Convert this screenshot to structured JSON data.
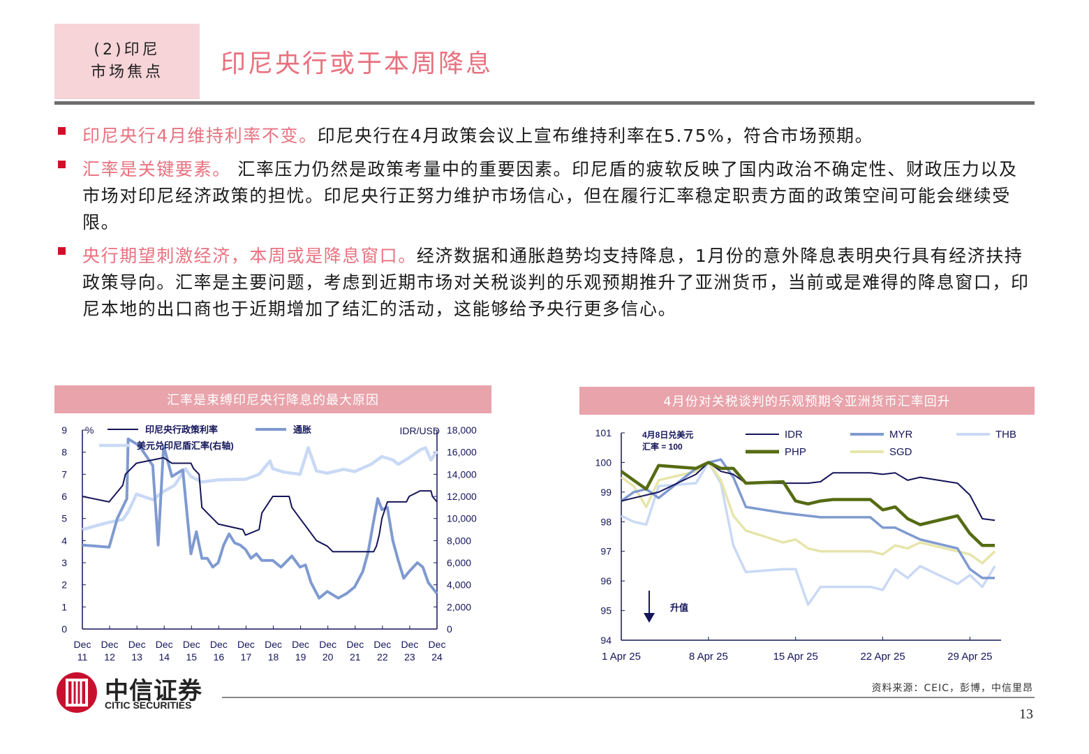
{
  "header": {
    "section_line1": "(2)印尼",
    "section_line2": "市场焦点",
    "title": "印尼央行或于本周降息"
  },
  "bullets": [
    {
      "highlight": "印尼央行4月维持利率不变。",
      "text": "印尼央行在4月政策会议上宣布维持利率在5.75%，符合市场预期。"
    },
    {
      "highlight": "汇率是关键要素。",
      "text": " 汇率压力仍然是政策考量中的重要因素。印尼盾的疲软反映了国内政治不确定性、财政压力以及市场对印尼经济政策的担忧。印尼央行正努力维护市场信心，但在履行汇率稳定职责方面的政策空间可能会继续受限。"
    },
    {
      "highlight": "央行期望刺激经济，本周或是降息窗口。",
      "text": "经济数据和通胀趋势均支持降息，1月份的意外降息表明央行具有经济扶持政策导向。汇率是主要问题，考虑到近期市场对关税谈判的乐观预期推升了亚洲货币，当前或是难得的降息窗口，印尼本地的出口商也于近期增加了结汇的活动，这能够给予央行更多信心。"
    }
  ],
  "colors": {
    "accent_pink": "#e9717f",
    "header_pink": "#e8a3ab",
    "box_pink": "#f6d4d8",
    "navy": "#14145a",
    "steel_blue": "#7f9ad0",
    "light_blue": "#c9d9f5",
    "olive": "#556b12",
    "pale_yellow": "#e6e5aa"
  },
  "chart_data": [
    {
      "type": "line",
      "title": "汇率是束缚印尼央行降息的最大原因",
      "left_unit": "%",
      "right_unit": "IDR/USD",
      "x_ticks": [
        "Dec 11",
        "Dec 12",
        "Dec 13",
        "Dec 14",
        "Dec 15",
        "Dec 16",
        "Dec 17",
        "Dec 18",
        "Dec 19",
        "Dec 20",
        "Dec 21",
        "Dec 22",
        "Dec 23",
        "Dec 24"
      ],
      "xlim": [
        2011.92,
        2024.92
      ],
      "ylim_left": [
        0,
        9
      ],
      "ylim_right": [
        0,
        18000
      ],
      "y_ticks_left": [
        "0",
        "1",
        "2",
        "3",
        "4",
        "5",
        "6",
        "7",
        "8",
        "9"
      ],
      "y_ticks_right": [
        "0",
        "2,000",
        "4,000",
        "6,000",
        "8,000",
        "10,000",
        "12,000",
        "14,000",
        "16,000",
        "18,000"
      ],
      "legend": [
        "印尼央行政策利率",
        "通胀",
        "美元兑印尼盾汇率(右轴)"
      ],
      "series": [
        {
          "name": "印尼央行政策利率",
          "axis": "left",
          "color": "#14145a",
          "points": [
            [
              2011.92,
              6.0
            ],
            [
              2012.9,
              5.75
            ],
            [
              2013.4,
              6.5
            ],
            [
              2013.5,
              7.0
            ],
            [
              2013.9,
              7.5
            ],
            [
              2014.9,
              7.75
            ],
            [
              2015.2,
              7.5
            ],
            [
              2015.9,
              7.5
            ],
            [
              2016.0,
              7.25
            ],
            [
              2016.2,
              7.0
            ],
            [
              2016.3,
              5.5
            ],
            [
              2016.5,
              5.25
            ],
            [
              2016.7,
              5.0
            ],
            [
              2016.9,
              4.75
            ],
            [
              2017.8,
              4.5
            ],
            [
              2017.9,
              4.25
            ],
            [
              2018.4,
              4.5
            ],
            [
              2018.5,
              5.25
            ],
            [
              2018.9,
              6.0
            ],
            [
              2019.5,
              6.0
            ],
            [
              2019.6,
              5.5
            ],
            [
              2019.9,
              5.0
            ],
            [
              2020.2,
              4.5
            ],
            [
              2020.5,
              4.0
            ],
            [
              2020.9,
              3.75
            ],
            [
              2021.1,
              3.5
            ],
            [
              2022.6,
              3.5
            ],
            [
              2022.7,
              3.75
            ],
            [
              2022.8,
              4.25
            ],
            [
              2022.9,
              5.0
            ],
            [
              2023.1,
              5.75
            ],
            [
              2023.8,
              5.75
            ],
            [
              2023.9,
              6.0
            ],
            [
              2024.3,
              6.25
            ],
            [
              2024.7,
              6.25
            ],
            [
              2024.75,
              6.0
            ],
            [
              2024.92,
              5.75
            ]
          ]
        },
        {
          "name": "通胀",
          "axis": "left",
          "color": "#7f9ad0",
          "points": [
            [
              2011.92,
              3.8
            ],
            [
              2012.9,
              3.7
            ],
            [
              2013.2,
              5.0
            ],
            [
              2013.55,
              5.9
            ],
            [
              2013.6,
              8.6
            ],
            [
              2014.0,
              8.3
            ],
            [
              2014.5,
              7.4
            ],
            [
              2014.7,
              3.8
            ],
            [
              2014.9,
              8.3
            ],
            [
              2015.2,
              6.9
            ],
            [
              2015.6,
              7.2
            ],
            [
              2015.9,
              3.4
            ],
            [
              2016.1,
              4.4
            ],
            [
              2016.3,
              3.2
            ],
            [
              2016.5,
              3.2
            ],
            [
              2016.7,
              2.8
            ],
            [
              2016.9,
              3.0
            ],
            [
              2017.1,
              3.8
            ],
            [
              2017.3,
              4.3
            ],
            [
              2017.5,
              3.9
            ],
            [
              2017.7,
              3.8
            ],
            [
              2017.9,
              3.6
            ],
            [
              2018.1,
              3.2
            ],
            [
              2018.3,
              3.4
            ],
            [
              2018.5,
              3.1
            ],
            [
              2018.9,
              3.1
            ],
            [
              2019.2,
              2.8
            ],
            [
              2019.6,
              3.3
            ],
            [
              2019.9,
              2.8
            ],
            [
              2020.1,
              2.9
            ],
            [
              2020.3,
              2.1
            ],
            [
              2020.6,
              1.4
            ],
            [
              2020.9,
              1.7
            ],
            [
              2021.3,
              1.4
            ],
            [
              2021.6,
              1.6
            ],
            [
              2021.9,
              1.9
            ],
            [
              2022.2,
              2.6
            ],
            [
              2022.4,
              3.5
            ],
            [
              2022.6,
              4.9
            ],
            [
              2022.75,
              5.9
            ],
            [
              2022.9,
              5.4
            ],
            [
              2023.1,
              5.5
            ],
            [
              2023.3,
              4.0
            ],
            [
              2023.5,
              3.1
            ],
            [
              2023.7,
              2.3
            ],
            [
              2023.9,
              2.6
            ],
            [
              2024.2,
              3.0
            ],
            [
              2024.4,
              2.8
            ],
            [
              2024.6,
              2.1
            ],
            [
              2024.92,
              1.6
            ]
          ]
        },
        {
          "name": "美元兑印尼盾汇率(右轴)",
          "axis": "right",
          "color": "#c9d9f5",
          "points": [
            [
              2011.92,
              9000
            ],
            [
              2012.5,
              9400
            ],
            [
              2012.9,
              9650
            ],
            [
              2013.4,
              9900
            ],
            [
              2013.6,
              10600
            ],
            [
              2013.9,
              12200
            ],
            [
              2014.5,
              11700
            ],
            [
              2014.9,
              12450
            ],
            [
              2015.3,
              13000
            ],
            [
              2015.7,
              14500
            ],
            [
              2015.9,
              13800
            ],
            [
              2016.3,
              13300
            ],
            [
              2016.9,
              13500
            ],
            [
              2017.9,
              13550
            ],
            [
              2018.4,
              14000
            ],
            [
              2018.8,
              15200
            ],
            [
              2018.9,
              14500
            ],
            [
              2019.3,
              14200
            ],
            [
              2019.9,
              14000
            ],
            [
              2020.2,
              16400
            ],
            [
              2020.5,
              14300
            ],
            [
              2020.9,
              14100
            ],
            [
              2021.5,
              14450
            ],
            [
              2021.9,
              14250
            ],
            [
              2022.5,
              14900
            ],
            [
              2022.9,
              15600
            ],
            [
              2023.3,
              15300
            ],
            [
              2023.5,
              14900
            ],
            [
              2023.9,
              15500
            ],
            [
              2024.3,
              16200
            ],
            [
              2024.5,
              16400
            ],
            [
              2024.7,
              15300
            ],
            [
              2024.92,
              16100
            ]
          ]
        }
      ]
    },
    {
      "type": "line",
      "title": "4月份对关税谈判的乐观预期令亚洲货币汇率回升",
      "annotation_base": "4月8日兑美元汇率 = 100",
      "annotation_arrow": "升值",
      "x_ticks": [
        "1 Apr 25",
        "8 Apr 25",
        "15 Apr 25",
        "22 Apr 25",
        "29 Apr 25"
      ],
      "x_tick_days": [
        1,
        8,
        15,
        22,
        29
      ],
      "xlim": [
        1,
        31.5
      ],
      "ylim": [
        94,
        101
      ],
      "y_ticks": [
        "94",
        "95",
        "96",
        "97",
        "98",
        "99",
        "100",
        "101"
      ],
      "legend": [
        "IDR",
        "MYR",
        "THB",
        "PHP",
        "SGD"
      ],
      "series": [
        {
          "name": "IDR",
          "color": "#14145a",
          "points": [
            [
              1,
              98.7
            ],
            [
              2,
              98.8
            ],
            [
              3,
              98.9
            ],
            [
              4,
              99.0
            ],
            [
              7,
              99.6
            ],
            [
              8,
              100
            ],
            [
              9,
              99.7
            ],
            [
              10,
              99.6
            ],
            [
              11,
              99.3
            ],
            [
              14,
              99.3
            ],
            [
              15,
              99.3
            ],
            [
              16,
              99.3
            ],
            [
              17,
              99.35
            ],
            [
              18,
              99.65
            ],
            [
              21,
              99.65
            ],
            [
              22,
              99.6
            ],
            [
              23,
              99.65
            ],
            [
              24,
              99.4
            ],
            [
              25,
              99.5
            ],
            [
              28,
              99.3
            ],
            [
              29,
              98.9
            ],
            [
              30,
              98.1
            ],
            [
              31,
              98.05
            ]
          ]
        },
        {
          "name": "MYR",
          "color": "#7f9ad0",
          "points": [
            [
              1,
              98.7
            ],
            [
              2,
              99.0
            ],
            [
              3,
              99.1
            ],
            [
              4,
              98.8
            ],
            [
              7,
              99.8
            ],
            [
              8,
              100
            ],
            [
              9,
              100.1
            ],
            [
              10,
              99.5
            ],
            [
              11,
              98.5
            ],
            [
              14,
              98.3
            ],
            [
              15,
              98.25
            ],
            [
              16,
              98.2
            ],
            [
              17,
              98.15
            ],
            [
              18,
              98.15
            ],
            [
              21,
              98.15
            ],
            [
              22,
              97.8
            ],
            [
              23,
              97.8
            ],
            [
              24,
              97.6
            ],
            [
              25,
              97.4
            ],
            [
              28,
              97.1
            ],
            [
              29,
              96.4
            ],
            [
              30,
              96.1
            ],
            [
              31,
              96.1
            ]
          ]
        },
        {
          "name": "THB",
          "color": "#c9d9f5",
          "points": [
            [
              1,
              98.2
            ],
            [
              2,
              98.0
            ],
            [
              3,
              97.9
            ],
            [
              4,
              99.2
            ],
            [
              7,
              99.3
            ],
            [
              8,
              100
            ],
            [
              9,
              99.3
            ],
            [
              10,
              97.2
            ],
            [
              11,
              96.3
            ],
            [
              14,
              96.4
            ],
            [
              15,
              96.4
            ],
            [
              16,
              95.2
            ],
            [
              17,
              95.8
            ],
            [
              18,
              95.8
            ],
            [
              21,
              95.8
            ],
            [
              22,
              95.7
            ],
            [
              23,
              96.4
            ],
            [
              24,
              96.1
            ],
            [
              25,
              96.5
            ],
            [
              28,
              95.9
            ],
            [
              29,
              96.2
            ],
            [
              30,
              95.8
            ],
            [
              31,
              96.5
            ]
          ]
        },
        {
          "name": "PHP",
          "color": "#556b12",
          "points": [
            [
              1,
              99.7
            ],
            [
              2,
              99.4
            ],
            [
              3,
              99.1
            ],
            [
              4,
              99.9
            ],
            [
              7,
              99.8
            ],
            [
              8,
              100
            ],
            [
              9,
              99.8
            ],
            [
              10,
              99.8
            ],
            [
              11,
              99.3
            ],
            [
              14,
              99.35
            ],
            [
              15,
              98.7
            ],
            [
              16,
              98.6
            ],
            [
              17,
              98.7
            ],
            [
              18,
              98.75
            ],
            [
              21,
              98.75
            ],
            [
              22,
              98.4
            ],
            [
              23,
              98.5
            ],
            [
              24,
              98.1
            ],
            [
              25,
              97.9
            ],
            [
              28,
              98.2
            ],
            [
              29,
              97.6
            ],
            [
              30,
              97.2
            ],
            [
              31,
              97.2
            ]
          ]
        },
        {
          "name": "SGD",
          "color": "#e6e5aa",
          "points": [
            [
              1,
              99.5
            ],
            [
              2,
              99.2
            ],
            [
              3,
              98.5
            ],
            [
              4,
              99.4
            ],
            [
              7,
              99.7
            ],
            [
              8,
              100
            ],
            [
              9,
              99.4
            ],
            [
              10,
              98.2
            ],
            [
              11,
              97.7
            ],
            [
              14,
              97.3
            ],
            [
              15,
              97.4
            ],
            [
              16,
              97.1
            ],
            [
              17,
              97.0
            ],
            [
              18,
              97.0
            ],
            [
              21,
              97.0
            ],
            [
              22,
              96.9
            ],
            [
              23,
              97.2
            ],
            [
              24,
              97.1
            ],
            [
              25,
              97.3
            ],
            [
              28,
              97.0
            ],
            [
              29,
              96.9
            ],
            [
              30,
              96.6
            ],
            [
              31,
              97.0
            ]
          ]
        }
      ]
    }
  ],
  "footer": {
    "source": "资料来源：CEIC，彭博，中信里昂",
    "page_number": "13",
    "logo_cn": "中信证券",
    "logo_en": "CITIC SECURITIES"
  }
}
